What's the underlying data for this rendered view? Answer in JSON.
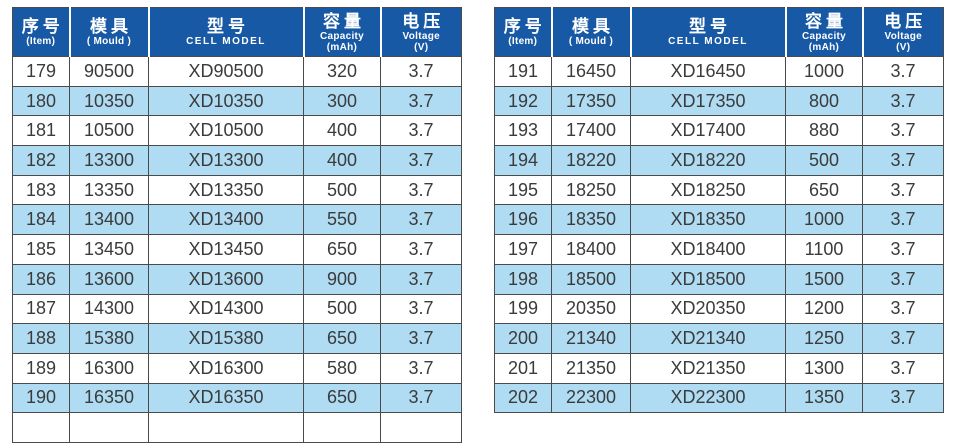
{
  "colors": {
    "header_bg": "#1859A6",
    "row_bg": "#FFFFFF",
    "row_alt_bg": "#AFDCF3",
    "border": "#4A4A4A",
    "header_text": "#FFFFFF",
    "cell_text": "#3B3B3B",
    "page_bg": "#FFFFFF"
  },
  "header": {
    "columns": [
      {
        "id": "item",
        "zh": "序号",
        "sub": "(Item)"
      },
      {
        "id": "mould",
        "zh": "模具",
        "sub": "( Mould )"
      },
      {
        "id": "model",
        "zh": "型号",
        "sub": "CELL MODEL"
      },
      {
        "id": "capacity",
        "zh": "容量",
        "sub": "Capacity",
        "sub2": "(mAh)"
      },
      {
        "id": "voltage",
        "zh": "电压",
        "sub": "Voltage",
        "sub2": "(V)"
      }
    ]
  },
  "tables": [
    {
      "partial_row_visible": true,
      "rows": [
        {
          "item": "179",
          "mould": "90500",
          "model": "XD90500",
          "capacity": "320",
          "voltage": "3.7"
        },
        {
          "item": "180",
          "mould": "10350",
          "model": "XD10350",
          "capacity": "300",
          "voltage": "3.7"
        },
        {
          "item": "181",
          "mould": "10500",
          "model": "XD10500",
          "capacity": "400",
          "voltage": "3.7"
        },
        {
          "item": "182",
          "mould": "13300",
          "model": "XD13300",
          "capacity": "400",
          "voltage": "3.7"
        },
        {
          "item": "183",
          "mould": "13350",
          "model": "XD13350",
          "capacity": "500",
          "voltage": "3.7"
        },
        {
          "item": "184",
          "mould": "13400",
          "model": "XD13400",
          "capacity": "550",
          "voltage": "3.7"
        },
        {
          "item": "185",
          "mould": "13450",
          "model": "XD13450",
          "capacity": "650",
          "voltage": "3.7"
        },
        {
          "item": "186",
          "mould": "13600",
          "model": "XD13600",
          "capacity": "900",
          "voltage": "3.7"
        },
        {
          "item": "187",
          "mould": "14300",
          "model": "XD14300",
          "capacity": "500",
          "voltage": "3.7"
        },
        {
          "item": "188",
          "mould": "15380",
          "model": "XD15380",
          "capacity": "650",
          "voltage": "3.7"
        },
        {
          "item": "189",
          "mould": "16300",
          "model": "XD16300",
          "capacity": "580",
          "voltage": "3.7"
        },
        {
          "item": "190",
          "mould": "16350",
          "model": "XD16350",
          "capacity": "650",
          "voltage": "3.7"
        }
      ]
    },
    {
      "partial_row_visible": false,
      "rows": [
        {
          "item": "191",
          "mould": "16450",
          "model": "XD16450",
          "capacity": "1000",
          "voltage": "3.7"
        },
        {
          "item": "192",
          "mould": "17350",
          "model": "XD17350",
          "capacity": "800",
          "voltage": "3.7"
        },
        {
          "item": "193",
          "mould": "17400",
          "model": "XD17400",
          "capacity": "880",
          "voltage": "3.7"
        },
        {
          "item": "194",
          "mould": "18220",
          "model": "XD18220",
          "capacity": "500",
          "voltage": "3.7"
        },
        {
          "item": "195",
          "mould": "18250",
          "model": "XD18250",
          "capacity": "650",
          "voltage": "3.7"
        },
        {
          "item": "196",
          "mould": "18350",
          "model": "XD18350",
          "capacity": "1000",
          "voltage": "3.7"
        },
        {
          "item": "197",
          "mould": "18400",
          "model": "XD18400",
          "capacity": "1100",
          "voltage": "3.7"
        },
        {
          "item": "198",
          "mould": "18500",
          "model": "XD18500",
          "capacity": "1500",
          "voltage": "3.7"
        },
        {
          "item": "199",
          "mould": "20350",
          "model": "XD20350",
          "capacity": "1200",
          "voltage": "3.7"
        },
        {
          "item": "200",
          "mould": "21340",
          "model": "XD21340",
          "capacity": "1250",
          "voltage": "3.7"
        },
        {
          "item": "201",
          "mould": "21350",
          "model": "XD21350",
          "capacity": "1300",
          "voltage": "3.7"
        },
        {
          "item": "202",
          "mould": "22300",
          "model": "XD22300",
          "capacity": "1350",
          "voltage": "3.7"
        }
      ]
    }
  ]
}
